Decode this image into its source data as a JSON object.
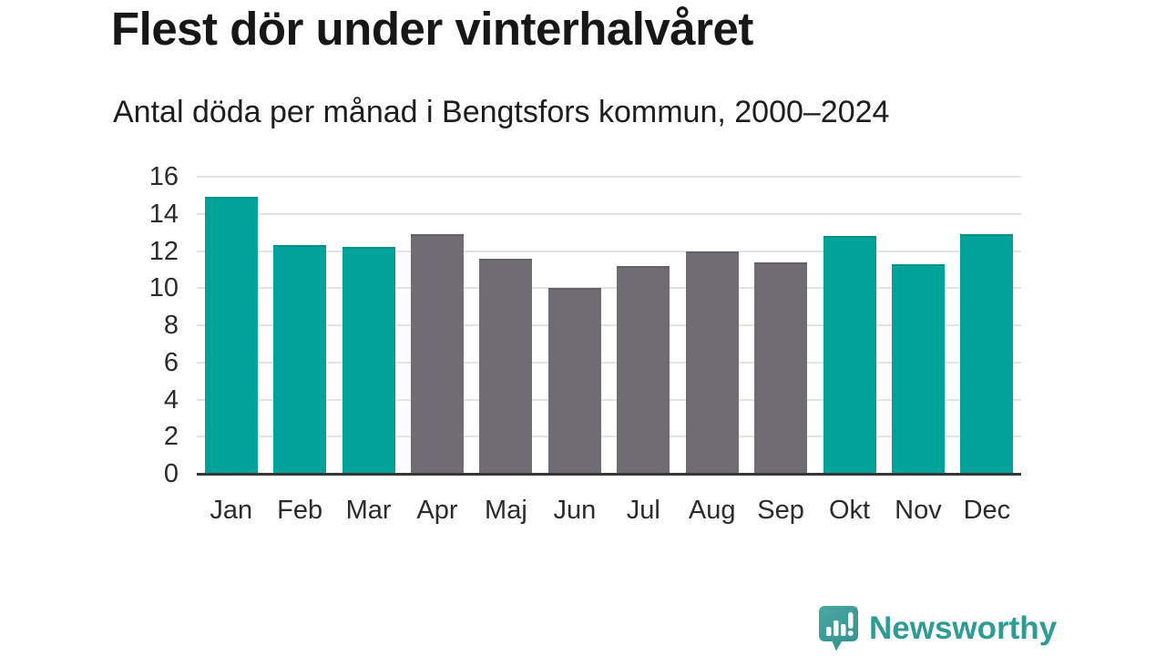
{
  "chart_data": {
    "type": "bar",
    "title": "Flest dör under vinterhalvåret",
    "subtitle": "Antal döda per månad i Bengtsfors kommun, 2000–2024",
    "categories": [
      "Jan",
      "Feb",
      "Mar",
      "Apr",
      "Maj",
      "Jun",
      "Jul",
      "Aug",
      "Sep",
      "Okt",
      "Nov",
      "Dec"
    ],
    "values": [
      14.9,
      12.3,
      12.2,
      12.9,
      11.6,
      10.0,
      11.2,
      12.0,
      11.4,
      12.8,
      11.3,
      12.9
    ],
    "bar_colors": [
      "winter",
      "winter",
      "winter",
      "summer",
      "summer",
      "summer",
      "summer",
      "summer",
      "summer",
      "winter",
      "winter",
      "winter"
    ],
    "colors": {
      "winter": "#00a29a",
      "summer": "#6f6d73"
    },
    "xlabel": "",
    "ylabel": "",
    "ylim": [
      0,
      16
    ],
    "yticks": [
      0,
      2,
      4,
      6,
      8,
      10,
      12,
      14,
      16
    ],
    "grid": true,
    "legend_position": "none"
  },
  "footer": {
    "brand": "Newsworthy",
    "brand_color": "#2e9c95",
    "logo_icon": "speech-bubble-bar-chart-icon",
    "logo_gradient_top": "#4aa7a1",
    "logo_gradient_bottom": "#35948f"
  }
}
